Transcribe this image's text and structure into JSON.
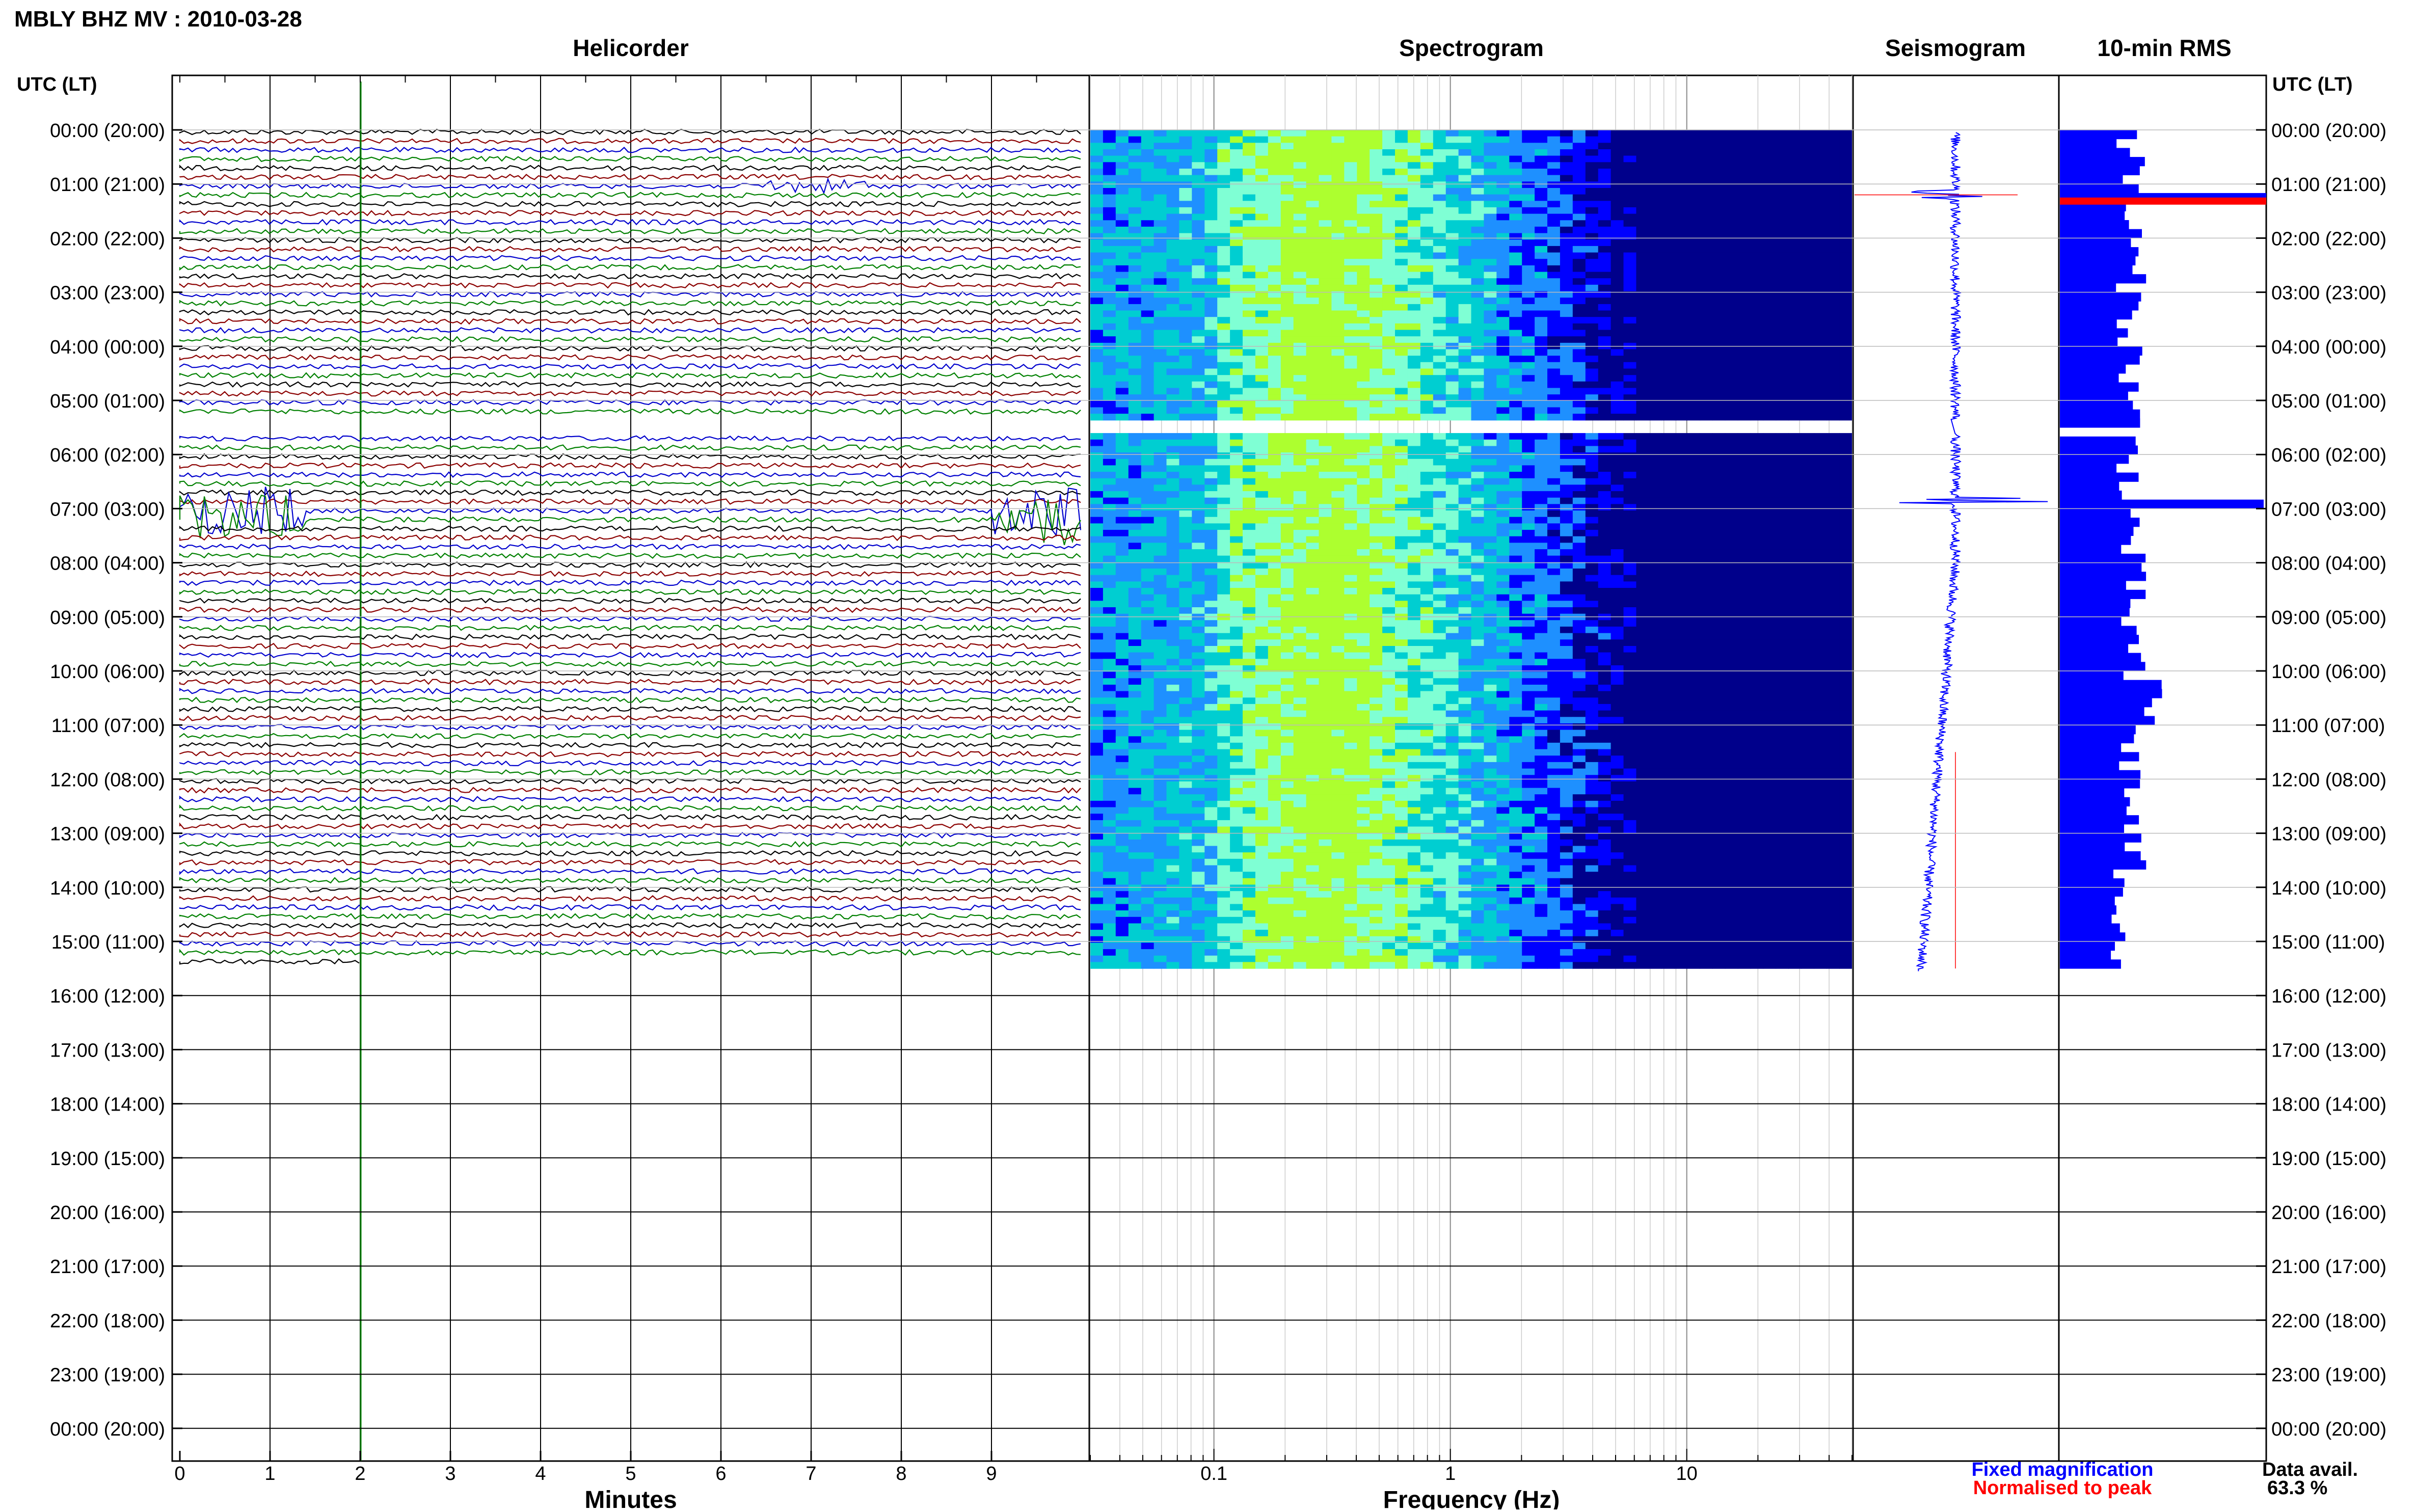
{
  "title": "MBLY BHZ MV : 2010-03-28",
  "panels": {
    "helicorder": "Helicorder",
    "spectrogram": "Spectrogram",
    "seismogram": "Seismogram",
    "rms": "10-min RMS"
  },
  "axis_header": "UTC (LT)",
  "time_labels": [
    "00:00 (20:00)",
    "01:00 (21:00)",
    "02:00 (22:00)",
    "03:00 (23:00)",
    "04:00 (00:00)",
    "05:00 (01:00)",
    "06:00 (02:00)",
    "07:00 (03:00)",
    "08:00 (04:00)",
    "09:00 (05:00)",
    "10:00 (06:00)",
    "11:00 (07:00)",
    "12:00 (08:00)",
    "13:00 (09:00)",
    "14:00 (10:00)",
    "15:00 (11:00)",
    "16:00 (12:00)",
    "17:00 (13:00)",
    "18:00 (14:00)",
    "19:00 (15:00)",
    "20:00 (16:00)",
    "21:00 (17:00)",
    "22:00 (18:00)",
    "23:00 (19:00)",
    "00:00 (20:00)"
  ],
  "minutes_ticks": [
    "0",
    "1",
    "2",
    "3",
    "4",
    "5",
    "6",
    "7",
    "8",
    "9"
  ],
  "minutes_label": "Minutes",
  "freq_ticks": [
    "0.1",
    "1",
    "10"
  ],
  "freq_label": "Frequency (Hz)",
  "legend": {
    "fixed": "Fixed magnification",
    "normalised": "Normalised to peak",
    "fixed_color": "#0000ff",
    "normalised_color": "#ff0000"
  },
  "data_avail": {
    "label": "Data avail.",
    "value": "63.3 %"
  },
  "chart_data": {
    "type": "heatmap",
    "title": "MBLY BHZ MV : 2010-03-28",
    "time_axis": {
      "label": "UTC (LT)",
      "range_hours": [
        0,
        24
      ],
      "data_end_hour": 15.5,
      "gap_hours": [
        5.35,
        5.6
      ]
    },
    "helicorder": {
      "x_range_minutes": [
        0,
        10
      ],
      "trace_colors": [
        "#000000",
        "#8b0000",
        "#0000cd",
        "#008000"
      ],
      "traces_per_hour": 6
    },
    "spectrogram": {
      "x_scale": "log",
      "x_range_hz": [
        0.03,
        50
      ],
      "colormap": [
        "#00008b",
        "#0000ff",
        "#1e90ff",
        "#00ced1",
        "#7fffd4",
        "#adff2f"
      ]
    },
    "rms": {
      "interval_minutes": 10,
      "color": "#0000ff",
      "peak_hours": [
        1.2,
        6.85
      ]
    }
  }
}
